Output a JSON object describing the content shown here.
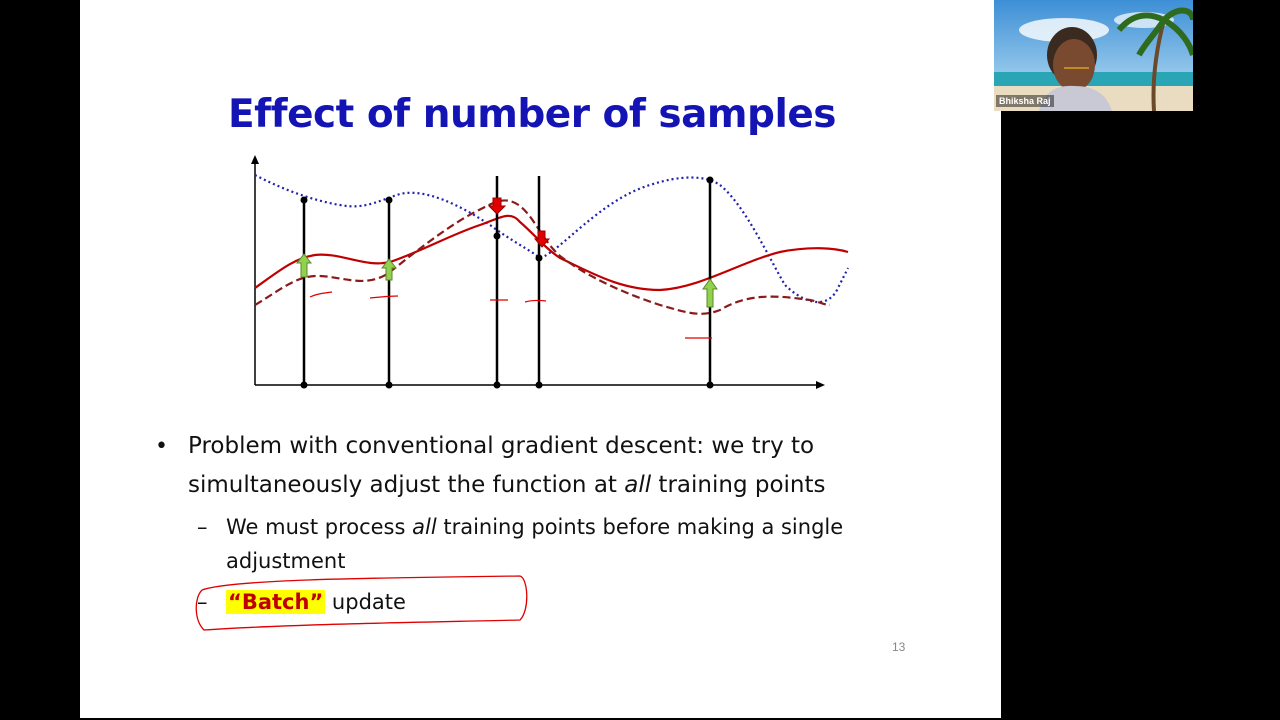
{
  "slide": {
    "title": "Effect of number of samples",
    "bullet_main_parts": [
      "Problem with conventional gradient descent: we try to simultaneously adjust the function at ",
      "all",
      " training points"
    ],
    "sub1_parts": [
      "We must process ",
      "all",
      " training points before making a single adjustment"
    ],
    "sub2_quote_open": "“",
    "sub2_batch": "Batch",
    "sub2_quote_close": "”",
    "sub2_rest": " update",
    "page_number": "13",
    "bullet_symbol": "•",
    "dash_symbol": "–"
  },
  "webcam": {
    "name": "Bhiksha Raj"
  },
  "colors": {
    "title": "#1414b4",
    "curve_red": "#c00000",
    "curve_dashed": "#8b1a1a",
    "curve_blue": "#2222aa",
    "arrow_green": "#92d050",
    "arrow_red": "#e00000",
    "highlight": "#ffff00",
    "ink_red": "#e00000"
  },
  "icons": {
    "up_arrow": "green-up-arrow-icon",
    "down_arrow": "red-down-arrow-icon"
  }
}
